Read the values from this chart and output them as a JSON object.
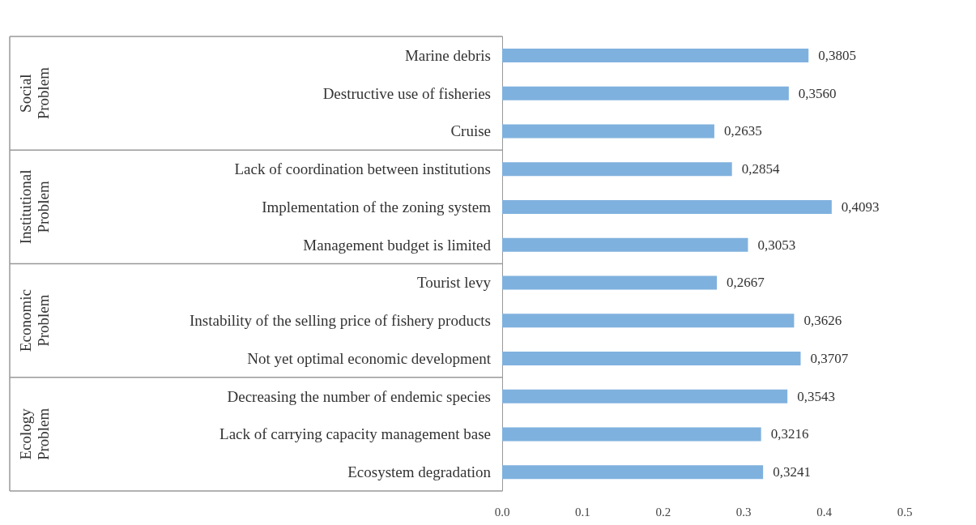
{
  "chart_data": {
    "type": "bar",
    "orientation": "horizontal",
    "categories": [
      "Marine debris",
      "Destructive use of fisheries",
      "Cruise",
      "Lack of coordination between institutions",
      "Implementation of the zoning system",
      "Management budget is limited",
      "Tourist levy",
      "Instability of the selling price of fishery products",
      "Not yet optimal economic development",
      "Decreasing the number of endemic species",
      "Lack of carrying capacity management base",
      "Ecosystem degradation"
    ],
    "values": [
      0.3805,
      0.356,
      0.2635,
      0.2854,
      0.4093,
      0.3053,
      0.2667,
      0.3626,
      0.3707,
      0.3543,
      0.3216,
      0.3241
    ],
    "value_labels": [
      "0,3805",
      "0,3560",
      "0,2635",
      "0,2854",
      "0,4093",
      "0,3053",
      "0,2667",
      "0,3626",
      "0,3707",
      "0,3543",
      "0,3216",
      "0,3241"
    ],
    "color": "#7fb1de",
    "xlim": [
      0,
      0.5
    ],
    "xticks": [
      {
        "value": 0,
        "label": "0.0"
      },
      {
        "value": 0.1,
        "label": "0.1"
      },
      {
        "value": 0.2,
        "label": "0.2"
      },
      {
        "value": 0.3,
        "label": "0.3"
      },
      {
        "value": 0.4,
        "label": "0.4"
      },
      {
        "value": 0.5,
        "label": "0.5"
      }
    ],
    "annotations": [
      "Social Problem",
      "Institutional Problem",
      "Economic Problem",
      "Ecology Problem"
    ],
    "grid": false
  }
}
